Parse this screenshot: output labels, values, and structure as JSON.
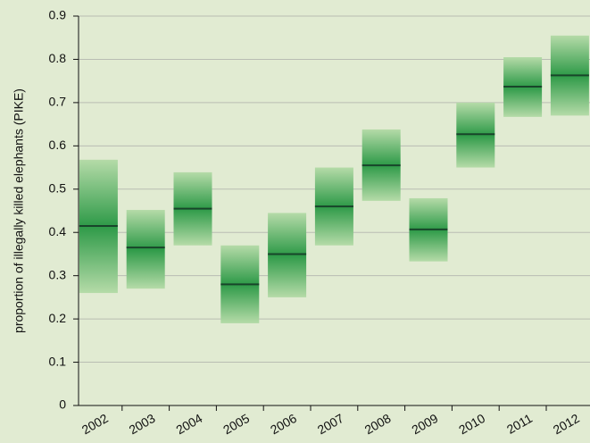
{
  "chart_data": {
    "type": "range",
    "ylabel": "proportion of illegally killed elephants (PIKE)",
    "categories": [
      "2002",
      "2003",
      "2004",
      "2005",
      "2006",
      "2007",
      "2008",
      "2009",
      "2010",
      "2011",
      "2012"
    ],
    "values": [
      0.415,
      0.365,
      0.455,
      0.28,
      0.35,
      0.46,
      0.555,
      0.407,
      0.627,
      0.737,
      0.763
    ],
    "low": [
      0.26,
      0.27,
      0.37,
      0.19,
      0.25,
      0.37,
      0.473,
      0.333,
      0.55,
      0.667,
      0.67
    ],
    "high": [
      0.568,
      0.452,
      0.539,
      0.37,
      0.445,
      0.55,
      0.638,
      0.479,
      0.7,
      0.805,
      0.855
    ],
    "color": "#2e9a48",
    "edge_color": "#b5dba8",
    "median_color": "#18452a",
    "ylim": [
      0,
      0.9
    ],
    "yticks": [
      0,
      0.1,
      0.2,
      0.3,
      0.4,
      0.5,
      0.6,
      0.7,
      0.8,
      0.9
    ],
    "grid": true
  }
}
